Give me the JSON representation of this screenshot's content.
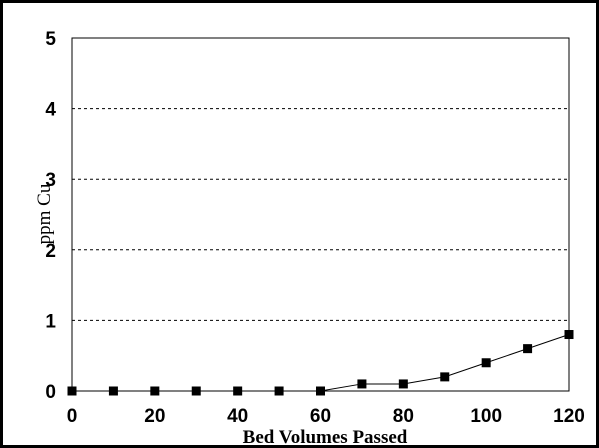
{
  "chart_data": {
    "type": "line",
    "title": "",
    "xlabel": "Bed Volumes Passed",
    "ylabel": "ppm Cu",
    "xlim": [
      0,
      120
    ],
    "ylim": [
      0,
      5
    ],
    "x_ticks": [
      "0",
      "20",
      "40",
      "60",
      "80",
      "100",
      "120"
    ],
    "y_ticks": [
      "0",
      "1",
      "2",
      "3",
      "4",
      "5"
    ],
    "grid": "horizontal-dashed",
    "legend": "none",
    "series": [
      {
        "x": [
          0,
          10,
          20,
          30,
          40,
          50,
          60,
          70,
          80,
          90,
          100,
          110,
          120
        ],
        "y": [
          0,
          0,
          0,
          0,
          0,
          0,
          0,
          0.1,
          0.1,
          0.2,
          0.4,
          0.6,
          0.8
        ]
      }
    ],
    "colors": {
      "line": "#000000",
      "marker": "#000000",
      "grid": "#000000"
    }
  }
}
